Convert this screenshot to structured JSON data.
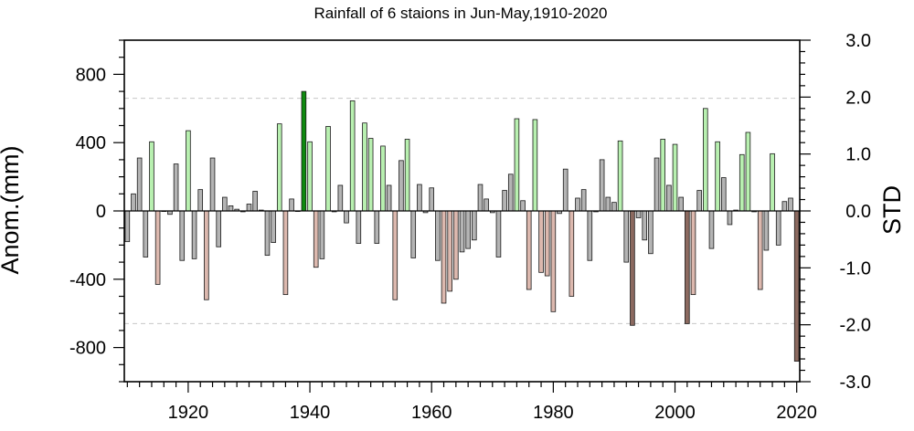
{
  "chart_data": {
    "type": "bar",
    "title": "Rainfall of 6 staions in Jun-May,1910-2020",
    "ylabel": "Anom.(mm)",
    "y2label": "STD",
    "xlim": [
      1910,
      2020
    ],
    "ylim": [
      -1000,
      1000
    ],
    "y2lim": [
      -3.0,
      3.0
    ],
    "x_ticks": [
      1920,
      1940,
      1960,
      1980,
      2000,
      2020
    ],
    "y_ticks": [
      -800,
      -400,
      0,
      400,
      800
    ],
    "y2_ticks": [
      "3.0",
      "2.0",
      "1.0",
      "0.0",
      "-1.0",
      "-2.0",
      "-3.0"
    ],
    "x_tick_labels": [
      "1920",
      "1940",
      "1960",
      "1980",
      "2000",
      "2020"
    ],
    "y_tick_labels": [
      "-800",
      "-400",
      "0",
      "400",
      "800"
    ],
    "dashed_reference_lines": [
      -660,
      660
    ],
    "grid": false,
    "years": [
      1910,
      1911,
      1912,
      1913,
      1914,
      1915,
      1916,
      1917,
      1918,
      1919,
      1920,
      1921,
      1922,
      1923,
      1924,
      1925,
      1926,
      1927,
      1928,
      1929,
      1930,
      1931,
      1932,
      1933,
      1934,
      1935,
      1936,
      1937,
      1938,
      1939,
      1940,
      1941,
      1942,
      1943,
      1944,
      1945,
      1946,
      1947,
      1948,
      1949,
      1950,
      1951,
      1952,
      1953,
      1954,
      1955,
      1956,
      1957,
      1958,
      1959,
      1960,
      1961,
      1962,
      1963,
      1964,
      1965,
      1966,
      1967,
      1968,
      1969,
      1970,
      1971,
      1972,
      1973,
      1974,
      1975,
      1976,
      1977,
      1978,
      1979,
      1980,
      1981,
      1982,
      1983,
      1984,
      1985,
      1986,
      1987,
      1988,
      1989,
      1990,
      1991,
      1992,
      1993,
      1994,
      1995,
      1996,
      1997,
      1998,
      1999,
      2000,
      2001,
      2002,
      2003,
      2004,
      2005,
      2006,
      2007,
      2008,
      2009,
      2010,
      2011,
      2012,
      2013,
      2014,
      2015,
      2016,
      2017,
      2018,
      2019,
      2020
    ],
    "values": [
      -180,
      100,
      310,
      -270,
      405,
      -430,
      0,
      -20,
      275,
      -290,
      470,
      -280,
      125,
      -520,
      310,
      -210,
      80,
      30,
      10,
      -5,
      40,
      115,
      5,
      -260,
      -185,
      510,
      -490,
      70,
      0,
      700,
      405,
      -330,
      -280,
      495,
      -5,
      150,
      -70,
      645,
      -190,
      515,
      425,
      -190,
      380,
      150,
      -520,
      295,
      420,
      -275,
      155,
      -10,
      135,
      -290,
      -540,
      -470,
      -400,
      -240,
      -220,
      -170,
      155,
      70,
      -10,
      -270,
      120,
      215,
      540,
      60,
      -460,
      535,
      -360,
      -380,
      -590,
      -15,
      245,
      -500,
      75,
      125,
      -290,
      -5,
      300,
      80,
      50,
      410,
      -300,
      -670,
      -40,
      -170,
      -250,
      310,
      420,
      150,
      390,
      80,
      -660,
      -490,
      120,
      600,
      -220,
      405,
      195,
      -80,
      5,
      330,
      460,
      -5,
      -460,
      -230,
      335,
      -200,
      55,
      75,
      -880
    ],
    "category_colors": {
      "gray": "#b4b4b4",
      "light-green": "#b8f0b0",
      "dark-green": "#0f8a0f",
      "light-brown": "#dcb8ae",
      "dark-brown": "#8c6a60",
      "outline": "#1a1a1a"
    }
  }
}
